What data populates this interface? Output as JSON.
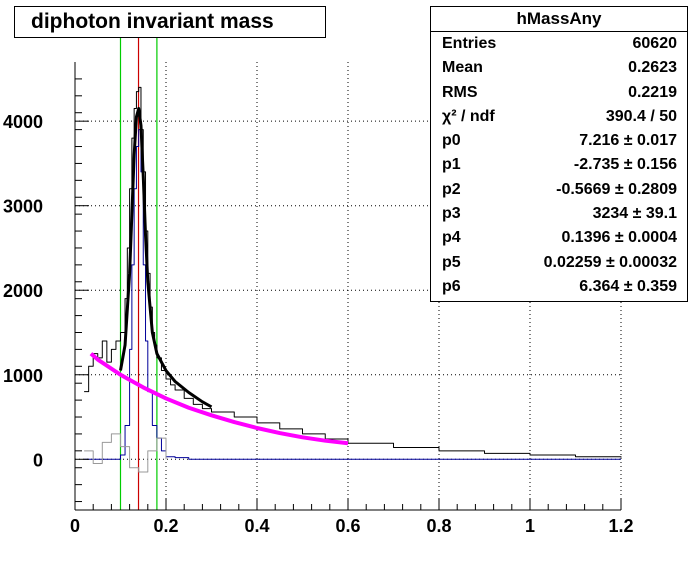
{
  "title": "diphoton invariant mass",
  "stats": {
    "name": "hMassAny",
    "rows": [
      {
        "key": "Entries",
        "value": "60620"
      },
      {
        "key": "Mean",
        "value": "0.2623"
      },
      {
        "key": "RMS",
        "value": "0.2219"
      },
      {
        "key": "χ² / ndf",
        "value": "390.4 / 50"
      },
      {
        "key": "p0",
        "value": "7.216 ± 0.017"
      },
      {
        "key": "p1",
        "value": "-2.735 ± 0.156"
      },
      {
        "key": "p2",
        "value": "-0.5669 ± 0.2809"
      },
      {
        "key": "p3",
        "value": "3234 ± 39.1"
      },
      {
        "key": "p4",
        "value": "0.1396 ± 0.0004"
      },
      {
        "key": "p5",
        "value": "0.02259 ± 0.00032"
      },
      {
        "key": "p6",
        "value": "6.364 ± 0.359"
      }
    ]
  },
  "chart_data": {
    "type": "line",
    "title": "diphoton invariant mass",
    "xlim": [
      0,
      1.2
    ],
    "ylim": [
      -600,
      4700
    ],
    "x_ticks": [
      0,
      0.2,
      0.4,
      0.6,
      0.8,
      1,
      1.2
    ],
    "x_tick_labels": [
      "0",
      "0.2",
      "0.4",
      "0.6",
      "0.8",
      "1",
      "1.2"
    ],
    "y_ticks": [
      0,
      1000,
      2000,
      3000,
      4000
    ],
    "y_tick_labels": [
      "0",
      "1000",
      "2000",
      "3000",
      "4000"
    ],
    "grid": true,
    "colors": {
      "histogram": "#000000",
      "signal": "#000099",
      "sideband": "#999999",
      "fit": "#000000",
      "background_fit": "#ff00ff",
      "window_lines": "#00cc00",
      "peak_line": "#cc0000"
    },
    "vertical_lines": {
      "peak": 0.1396,
      "window": [
        0.1,
        0.18
      ]
    },
    "series": [
      {
        "role": "histogram",
        "x": [
          0.02,
          0.03,
          0.04,
          0.05,
          0.06,
          0.07,
          0.08,
          0.09,
          0.1,
          0.11,
          0.115,
          0.12,
          0.125,
          0.13,
          0.135,
          0.14,
          0.145,
          0.15,
          0.155,
          0.16,
          0.165,
          0.17,
          0.175,
          0.18,
          0.19,
          0.2,
          0.21,
          0.22,
          0.24,
          0.26,
          0.28,
          0.3,
          0.35,
          0.4,
          0.45,
          0.5,
          0.55,
          0.6,
          0.7,
          0.8,
          0.9,
          1.0,
          1.1,
          1.2
        ],
        "y": [
          800,
          1100,
          1250,
          1200,
          1400,
          1150,
          1300,
          1400,
          1500,
          1900,
          2500,
          3200,
          3800,
          4150,
          4350,
          4400,
          3900,
          3400,
          2700,
          2200,
          1800,
          1500,
          1350,
          1200,
          1050,
          950,
          880,
          820,
          720,
          650,
          600,
          560,
          500,
          430,
          360,
          300,
          240,
          190,
          140,
          100,
          70,
          50,
          30,
          20
        ]
      },
      {
        "role": "signal",
        "x": [
          0.02,
          0.05,
          0.08,
          0.1,
          0.11,
          0.12,
          0.125,
          0.13,
          0.135,
          0.14,
          0.145,
          0.15,
          0.155,
          0.16,
          0.17,
          0.18,
          0.19,
          0.2,
          0.22,
          0.25,
          0.3,
          0.4,
          0.5,
          0.6,
          0.8,
          1.0,
          1.2
        ],
        "y": [
          0,
          0,
          0,
          50,
          400,
          1300,
          2300,
          3200,
          3700,
          3900,
          3400,
          2300,
          1400,
          800,
          400,
          250,
          100,
          30,
          20,
          0,
          0,
          0,
          0,
          0,
          0,
          0,
          0
        ]
      },
      {
        "role": "sideband",
        "x": [
          0.02,
          0.04,
          0.06,
          0.08,
          0.1,
          0.12,
          0.14,
          0.16,
          0.18,
          0.2
        ],
        "y": [
          100,
          -50,
          200,
          300,
          150,
          -100,
          -150,
          100,
          250,
          0
        ]
      },
      {
        "role": "fit",
        "x": [
          0.1,
          0.11,
          0.12,
          0.125,
          0.13,
          0.135,
          0.14,
          0.145,
          0.15,
          0.155,
          0.16,
          0.17,
          0.18,
          0.2,
          0.22,
          0.25,
          0.28,
          0.3
        ],
        "y": [
          1050,
          1350,
          2200,
          2900,
          3600,
          4050,
          4150,
          3950,
          3350,
          2650,
          2100,
          1500,
          1250,
          1050,
          920,
          790,
          680,
          620
        ]
      },
      {
        "role": "background_fit",
        "x": [
          0.035,
          0.05,
          0.1,
          0.15,
          0.2,
          0.25,
          0.3,
          0.35,
          0.4,
          0.45,
          0.5,
          0.55,
          0.6
        ],
        "y": [
          1250,
          1180,
          1000,
          850,
          720,
          610,
          520,
          440,
          370,
          310,
          260,
          220,
          190
        ]
      }
    ]
  }
}
